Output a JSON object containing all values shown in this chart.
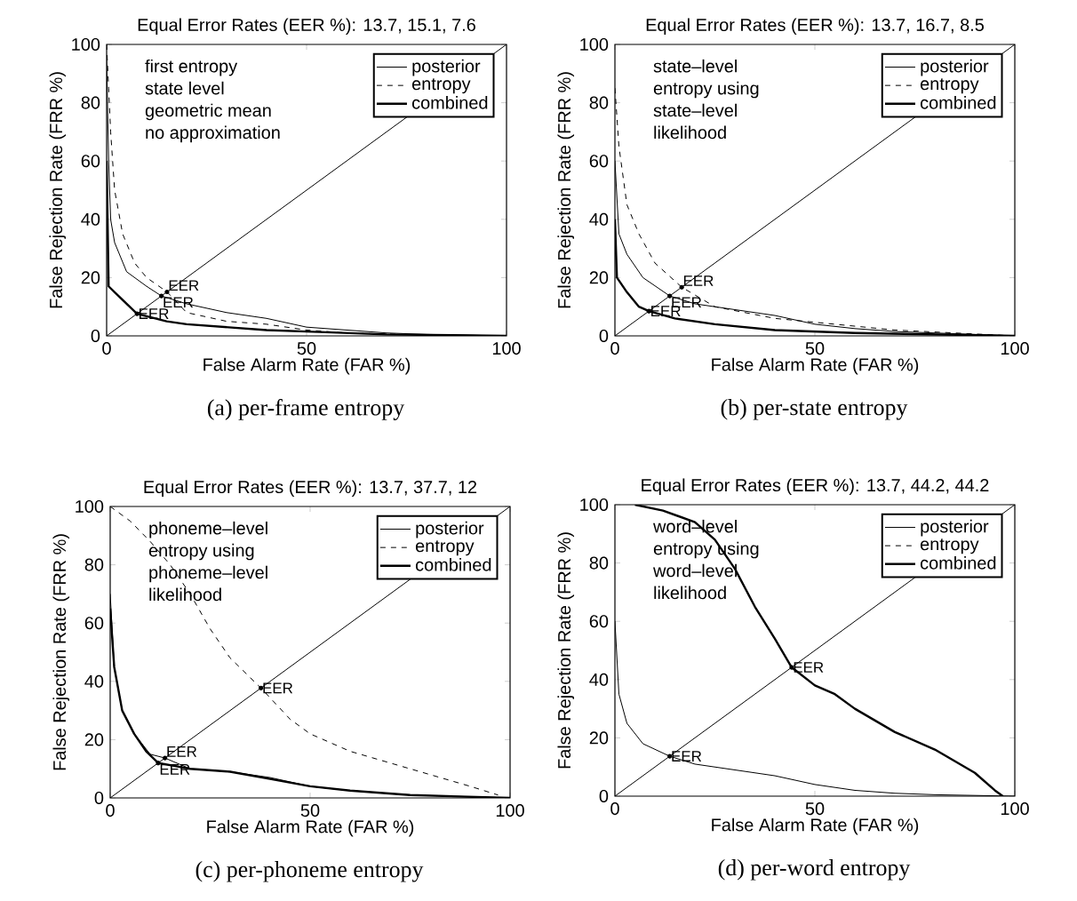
{
  "chart_data": [
    {
      "type": "line",
      "title": "Equal Error Rates (EER %): 13.7, 15.1, 7.6",
      "subtitle": "(a) per-frame entropy",
      "xlabel": "False Alarm Rate (FAR %)",
      "ylabel": "False Rejection Rate (FRR %)",
      "xlim": [
        0,
        100
      ],
      "ylim": [
        0,
        100
      ],
      "xticks": [
        0,
        50,
        100
      ],
      "yticks": [
        0,
        20,
        40,
        60,
        80,
        100
      ],
      "legend": "top right",
      "annotations": [
        "first entropy",
        "state level",
        "geometric mean",
        "no approximation",
        {
          "text": "EER",
          "x": 13.7,
          "y": 13.7
        },
        {
          "text": "EER",
          "x": 15.1,
          "y": 15.1
        },
        {
          "text": "EER",
          "x": 7.6,
          "y": 7.6
        }
      ],
      "series": [
        {
          "name": "posterior",
          "color": "#000000",
          "line_style": "solid",
          "x": [
            0,
            0.5,
            1,
            2,
            5,
            10,
            13.7,
            20,
            30,
            40,
            50,
            60,
            70,
            80,
            100
          ],
          "values": [
            95,
            60,
            40,
            32,
            22,
            17,
            13.7,
            11,
            8,
            6,
            3,
            2,
            1,
            0.5,
            0
          ]
        },
        {
          "name": "entropy",
          "color": "#000000",
          "line_style": "dashed",
          "x": [
            0,
            0.5,
            1,
            2,
            4,
            7,
            10,
            15.1,
            20,
            30,
            40,
            50,
            60,
            80,
            100
          ],
          "values": [
            100,
            85,
            70,
            50,
            35,
            25,
            20,
            15.1,
            8,
            5,
            4,
            2,
            1,
            0.3,
            0
          ]
        },
        {
          "name": "combined",
          "color": "#000000",
          "line_style": "solid",
          "x": [
            0,
            0.5,
            2,
            5,
            7.6,
            15,
            20,
            30,
            40,
            50,
            70,
            100
          ],
          "values": [
            60,
            17,
            15,
            11,
            7.6,
            5,
            4,
            3,
            2,
            1.5,
            0.5,
            0
          ]
        },
        {
          "color": "#000000",
          "line_style": "solid",
          "x": [
            0,
            100
          ],
          "values": [
            0,
            100
          ]
        }
      ]
    },
    {
      "type": "line",
      "title": "Equal Error Rates (EER %): 13.7, 16.7, 8.5",
      "subtitle": "(b) per-state entropy",
      "xlabel": "False Alarm Rate (FAR %)",
      "ylabel": "False Rejection Rate (FRR %)",
      "xlim": [
        0,
        100
      ],
      "ylim": [
        0,
        100
      ],
      "xticks": [
        0,
        50,
        100
      ],
      "yticks": [
        0,
        20,
        40,
        60,
        80,
        100
      ],
      "legend": "top right",
      "annotations": [
        "state–level",
        "entropy using",
        "state–level",
        "likelihood",
        {
          "text": "EER",
          "x": 13.7,
          "y": 13.7
        },
        {
          "text": "EER",
          "x": 16.7,
          "y": 16.7
        },
        {
          "text": "EER",
          "x": 8.5,
          "y": 8.5
        }
      ],
      "series": [
        {
          "name": "posterior",
          "color": "#000000",
          "line_style": "solid",
          "x": [
            0,
            1,
            3,
            7,
            13.7,
            20,
            30,
            40,
            50,
            60,
            70,
            100
          ],
          "values": [
            60,
            35,
            28,
            20,
            13.7,
            11,
            9,
            7,
            4,
            2.5,
            1.5,
            0
          ]
        },
        {
          "name": "entropy",
          "color": "#000000",
          "line_style": "dashed",
          "x": [
            0,
            1,
            3,
            6,
            10,
            16.7,
            25,
            40,
            55,
            70,
            100
          ],
          "values": [
            85,
            65,
            45,
            35,
            25,
            16.7,
            10,
            6,
            4,
            2,
            0
          ]
        },
        {
          "name": "combined",
          "color": "#000000",
          "line_style": "solid",
          "x": [
            0,
            0.5,
            3,
            6,
            8.5,
            15,
            25,
            40,
            60,
            100
          ],
          "values": [
            40,
            20,
            15,
            10,
            8.5,
            6,
            4,
            2,
            1,
            0
          ]
        },
        {
          "color": "#000000",
          "line_style": "solid",
          "x": [
            0,
            100
          ],
          "values": [
            0,
            100
          ]
        }
      ]
    },
    {
      "type": "line",
      "title": "Equal Error Rates (EER %): 13.7, 37.7, 12",
      "subtitle": "(c) per-phoneme entropy",
      "xlabel": "False Alarm Rate (FAR %)",
      "ylabel": "False Rejection Rate (FRR %)",
      "xlim": [
        0,
        100
      ],
      "ylim": [
        0,
        100
      ],
      "xticks": [
        0,
        50,
        100
      ],
      "yticks": [
        0,
        20,
        40,
        60,
        80,
        100
      ],
      "legend": "top right",
      "annotations": [
        "phoneme–level",
        "entropy using",
        "phoneme–level",
        "likelihood",
        {
          "text": "EER",
          "x": 13.7,
          "y": 13.7
        },
        {
          "text": "EER",
          "x": 37.7,
          "y": 37.7
        },
        {
          "text": "EER",
          "x": 12,
          "y": 12
        }
      ],
      "series": [
        {
          "name": "posterior",
          "color": "#000000",
          "line_style": "solid",
          "x": [
            0,
            1,
            3,
            6,
            10,
            13.7,
            20,
            30,
            40,
            50,
            60,
            75,
            100
          ],
          "values": [
            70,
            45,
            30,
            22,
            15,
            13.7,
            10,
            9,
            7,
            4,
            2.5,
            1,
            0
          ]
        },
        {
          "name": "entropy",
          "color": "#000000",
          "line_style": "dashed",
          "x": [
            0,
            5,
            10,
            15,
            20,
            25,
            30,
            37.7,
            45,
            50,
            60,
            70,
            80,
            90,
            97
          ],
          "values": [
            100,
            95,
            88,
            80,
            70,
            58,
            48,
            37.7,
            27,
            22,
            16,
            12,
            8,
            4,
            1
          ]
        },
        {
          "name": "combined",
          "color": "#000000",
          "line_style": "solid",
          "x": [
            0,
            1,
            3,
            6,
            9,
            12,
            20,
            30,
            40,
            50,
            60,
            75,
            100
          ],
          "values": [
            65,
            45,
            30,
            22,
            16,
            12,
            10,
            9,
            6.5,
            4,
            2.5,
            1,
            0
          ]
        },
        {
          "color": "#000000",
          "line_style": "solid",
          "x": [
            0,
            100
          ],
          "values": [
            0,
            100
          ]
        }
      ]
    },
    {
      "type": "line",
      "title": "Equal Error Rates (EER %): 13.7, 44.2, 44.2",
      "subtitle": "(d) per-word entropy",
      "xlabel": "False Alarm Rate (FAR %)",
      "ylabel": "False Rejection Rate (FRR %)",
      "xlim": [
        0,
        100
      ],
      "ylim": [
        0,
        100
      ],
      "xticks": [
        0,
        50,
        100
      ],
      "yticks": [
        0,
        20,
        40,
        60,
        80,
        100
      ],
      "legend": "top right",
      "annotations": [
        "word–level",
        "entropy using",
        "word–level",
        "likelihood",
        {
          "text": "EER",
          "x": 13.7,
          "y": 13.7
        },
        {
          "text": "EER",
          "x": 44.2,
          "y": 44.2
        }
      ],
      "series": [
        {
          "name": "posterior",
          "color": "#000000",
          "line_style": "solid",
          "x": [
            0,
            1,
            3,
            7,
            13.7,
            20,
            30,
            40,
            50,
            60,
            70,
            80,
            100
          ],
          "values": [
            60,
            35,
            25,
            18,
            13.7,
            11,
            9,
            7,
            4,
            2,
            1,
            0.5,
            0
          ]
        },
        {
          "name": "entropy",
          "color": "#000000",
          "line_style": "dashed"
        },
        {
          "name": "combined",
          "color": "#000000",
          "line_style": "solid",
          "x": [
            5,
            12,
            20,
            25,
            30,
            35,
            40,
            44.2,
            50,
            55,
            60,
            70,
            80,
            90,
            95,
            97
          ],
          "values": [
            100,
            98,
            94,
            88,
            78,
            65,
            54,
            44.2,
            38,
            35,
            30,
            22,
            16,
            8,
            2,
            0
          ]
        },
        {
          "color": "#000000",
          "line_style": "solid",
          "x": [
            0,
            100
          ],
          "values": [
            0,
            100
          ]
        }
      ]
    }
  ]
}
